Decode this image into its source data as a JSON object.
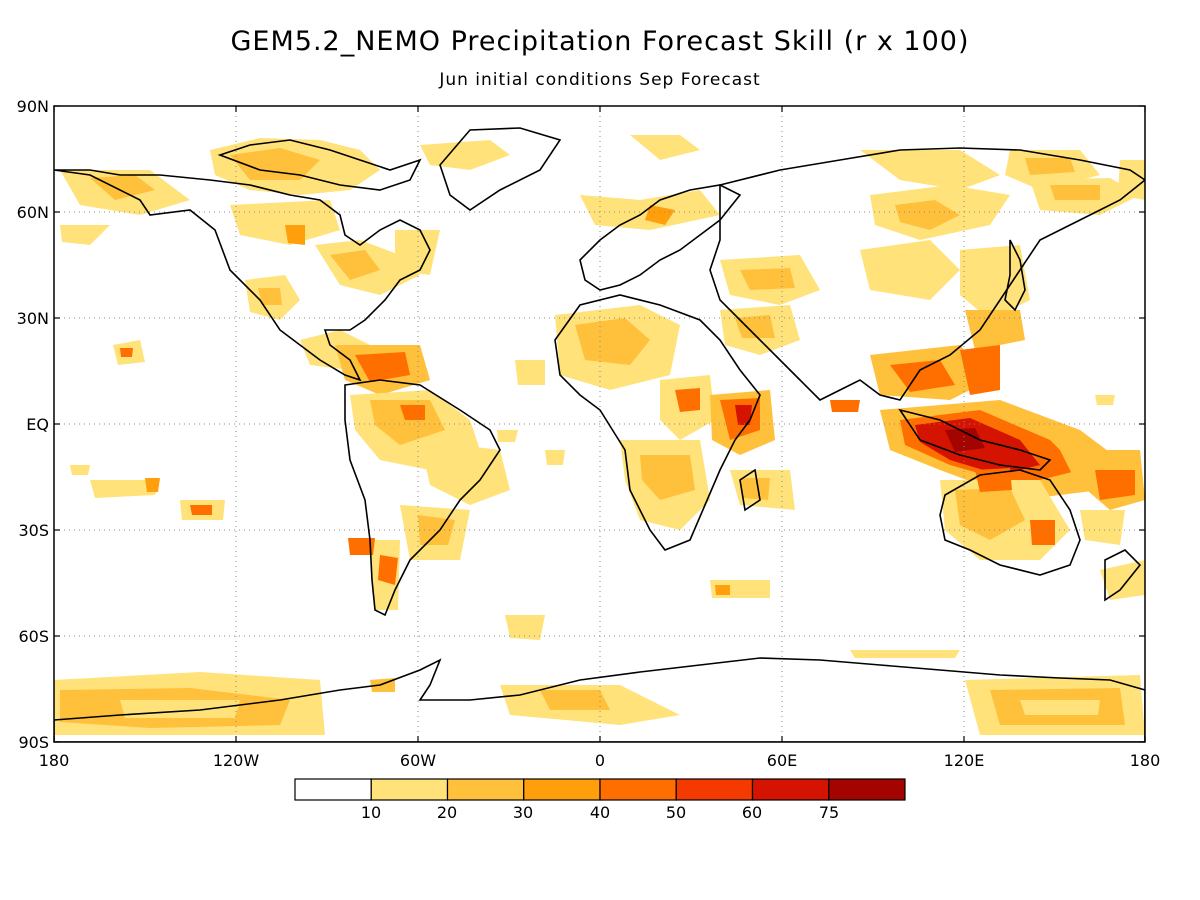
{
  "title": "GEM5.2_NEMO Precipitation Forecast Skill (r x 100)",
  "subtitle": "Jun initial conditions  Sep Forecast",
  "lat_labels": [
    "90N",
    "60N",
    "30N",
    "EQ",
    "30S",
    "60S",
    "90S"
  ],
  "lon_labels": [
    "180",
    "120W",
    "60W",
    "0",
    "60E",
    "120E",
    "180"
  ],
  "colorbar": {
    "labels": [
      "10",
      "20",
      "30",
      "40",
      "50",
      "60",
      "75"
    ],
    "colors": [
      "#ffffff",
      "#ffe27a",
      "#ffc03c",
      "#ff9f0c",
      "#ff6f00",
      "#f43a00",
      "#d41400",
      "#a30400"
    ]
  },
  "land_color": "#000000"
}
